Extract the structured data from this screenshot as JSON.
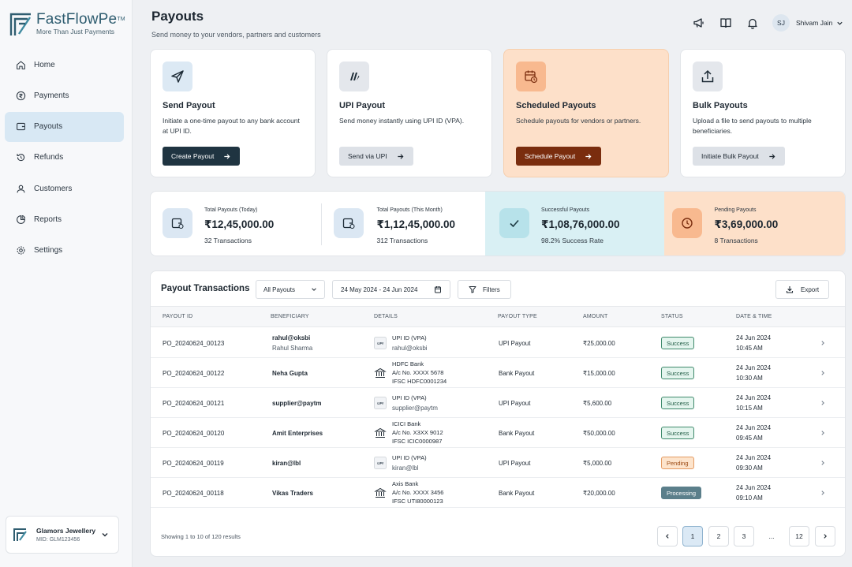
{
  "brand": {
    "name": "FastFlowPe",
    "tm": "TM",
    "tagline": "More Than Just Payments"
  },
  "nav": [
    {
      "label": "Home",
      "icon": "home-icon"
    },
    {
      "label": "Payments",
      "icon": "rupee-circle-icon"
    },
    {
      "label": "Payouts",
      "icon": "wallet-icon",
      "active": true
    },
    {
      "label": "Refunds",
      "icon": "refund-icon"
    },
    {
      "label": "Customers",
      "icon": "user-icon"
    },
    {
      "label": "Reports",
      "icon": "pie-chart-icon"
    },
    {
      "label": "Settings",
      "icon": "gear-icon"
    }
  ],
  "merchant": {
    "name": "Glamors Jewellery",
    "mid": "MID: GLM123456"
  },
  "header": {
    "title": "Payouts",
    "subtitle": "Send money to your vendors, partners and customers"
  },
  "user": {
    "initials": "SJ",
    "name": "Shivam Jain"
  },
  "actions": [
    {
      "title": "Send Payout",
      "desc": "Initiate a one-time payout to any bank account at UPI ID.",
      "button": "Create Payout",
      "icon": "paper-plane-icon"
    },
    {
      "title": "UPI Payout",
      "desc": "Send money instantly using UPI ID (VPA).",
      "button": "Send via UPI",
      "icon": "upi-icon"
    },
    {
      "title": "Scheduled Payouts",
      "desc": "Schedule payouts for vendors or partners.",
      "button": "Schedule Payout",
      "icon": "calendar-clock-icon"
    },
    {
      "title": "Bulk Payouts",
      "desc": "Upload a file to send payouts to multiple beneficiaries.",
      "button": "Initiate Bulk Payout",
      "icon": "upload-icon"
    }
  ],
  "stats": [
    {
      "label": "Total Payouts (Today)",
      "value": "₹12,45,000.00",
      "sub": "32 Transactions",
      "icon": "wallet-icon"
    },
    {
      "label": "Total Payouts (This Month)",
      "value": "₹1,12,45,000.00",
      "sub": "312 Transactions",
      "icon": "wallet-icon"
    },
    {
      "label": "Successful Payouts",
      "value": "₹1,08,76,000.00",
      "sub": "98.2% Success Rate",
      "icon": "check-icon"
    },
    {
      "label": "Pending Payouts",
      "value": "₹3,69,000.00",
      "sub": "8 Transactions",
      "icon": "clock-icon"
    }
  ],
  "table": {
    "title": "Payout Transactions",
    "filter_select": "All Payouts",
    "date_range": "24 May 2024 - 24 Jun 2024",
    "filters_label": "Filters",
    "export_label": "Export",
    "columns": [
      "PAYOUT ID",
      "BENEFICIARY",
      "DETAILS",
      "PAYOUT TYPE",
      "AMOUNT",
      "STATUS",
      "DATE & TIME"
    ],
    "rows": [
      {
        "id": "PO_20240624_00123",
        "ben": "rahul@oksbi",
        "ben_sub": "Rahul Sharma",
        "detail_type": "upi",
        "details": [
          "UPI ID (VPA)",
          "rahul@oksbi"
        ],
        "type": "UPI Payout",
        "amount": "₹25,000.00",
        "status": "Success",
        "date": "24 Jun 2024",
        "time": "10:45 AM"
      },
      {
        "id": "PO_20240624_00122",
        "ben": "Neha Gupta",
        "ben_sub": "",
        "detail_type": "bank",
        "details": [
          "HDFC Bank",
          "A/c No. XXXX 5678",
          "IFSC HDFC0001234"
        ],
        "type": "Bank Payout",
        "amount": "₹15,000.00",
        "status": "Success",
        "date": "24 Jun 2024",
        "time": "10:30 AM"
      },
      {
        "id": "PO_20240624_00121",
        "ben": "supplier@paytm",
        "ben_sub": "",
        "detail_type": "upi",
        "details": [
          "UPI ID (VPA)",
          "supplier@paytm"
        ],
        "type": "UPI Payout",
        "amount": "₹5,600.00",
        "status": "Success",
        "date": "24 Jun 2024",
        "time": "10:15 AM"
      },
      {
        "id": "PO_20240624_00120",
        "ben": "Amit Enterprises",
        "ben_sub": "",
        "detail_type": "bank",
        "details": [
          "ICICI Bank",
          "A/c No. X3XX 9012",
          "IFSC ICIC0000987"
        ],
        "type": "Bank Payout",
        "amount": "₹50,000.00",
        "status": "Success",
        "date": "24 Jun 2024",
        "time": "09:45 AM"
      },
      {
        "id": "PO_20240624_00119",
        "ben": "kiran@lbl",
        "ben_sub": "",
        "detail_type": "upi",
        "details": [
          "UPI ID (VPA)",
          "kiran@lbl"
        ],
        "type": "UPI Payout",
        "amount": "₹5,000.00",
        "status": "Pending",
        "date": "24 Jun 2024",
        "time": "09:30 AM"
      },
      {
        "id": "PO_20240624_00118",
        "ben": "Vikas Traders",
        "ben_sub": "",
        "detail_type": "bank",
        "details": [
          "Axis Bank",
          "A/c No. XXXX 3456",
          "IFSC UTI80000123"
        ],
        "type": "Bank Payout",
        "amount": "₹20,000.00",
        "status": "Processing",
        "date": "24 Jun 2024",
        "time": "09:10 AM"
      }
    ],
    "footer": "Showing 1 to 10 of 120 results",
    "pages": [
      "1",
      "2",
      "3",
      "...",
      "12"
    ]
  },
  "colors": {
    "dark_button": "#1f3441",
    "orange_button": "#7a2d0e",
    "accent_blue": "#d8e8f4",
    "success_bg": "#d9f0f4",
    "pending_bg": "#fde0c9"
  }
}
